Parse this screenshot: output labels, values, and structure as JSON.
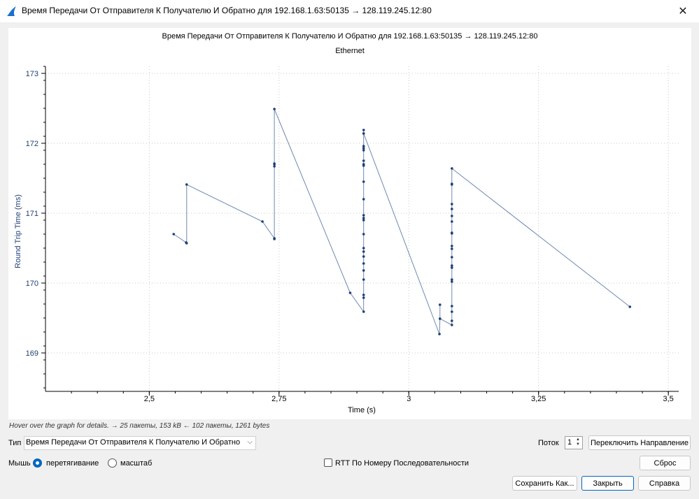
{
  "window": {
    "title": "Время Передачи От Отправителя К Получателю И Обратно для 192.168.1.63:50135 → 128.119.245.12:80"
  },
  "chart_data": {
    "type": "line",
    "title": "Время Передачи От Отправителя К Получателю И Обратно для 192.168.1.63:50135 → 128.119.245.12:80",
    "subtitle": "Ethernet",
    "xlabel": "Time (s)",
    "ylabel": "Round Trip Time (ms)",
    "xlim": [
      2.3,
      3.52
    ],
    "ylim": [
      168.45,
      173.1
    ],
    "xticks": [
      2.5,
      2.75,
      3,
      3.25,
      3.5
    ],
    "xtick_labels": [
      "2,5",
      "2,75",
      "3",
      "3,25",
      "3,5"
    ],
    "yticks": [
      169,
      170,
      171,
      172,
      173
    ],
    "ytick_labels": [
      "169",
      "170",
      "171",
      "172",
      "173"
    ],
    "grid": true,
    "line_color": "#6f89b0",
    "point_color": "#1f3f75",
    "series": [
      {
        "x": [
          2.547,
          2.571,
          2.572,
          2.572,
          2.718,
          2.741,
          2.741,
          2.741,
          2.741,
          2.741,
          2.741,
          2.887,
          2.913,
          2.913,
          2.913,
          2.913,
          2.913,
          2.913,
          2.913,
          2.913,
          2.913,
          2.913,
          2.913,
          2.913,
          2.913,
          2.913,
          2.913,
          2.913,
          2.913,
          2.913,
          2.913,
          2.913,
          2.913,
          2.913,
          2.913,
          2.913,
          3.059,
          3.06,
          3.06,
          3.06,
          3.083,
          3.083,
          3.083,
          3.083,
          3.083,
          3.083,
          3.083,
          3.083,
          3.083,
          3.083,
          3.083,
          3.083,
          3.083,
          3.083,
          3.083,
          3.083,
          3.083,
          3.083,
          3.083,
          3.083,
          3.426
        ],
        "y": [
          170.7,
          170.58,
          170.57,
          171.41,
          170.88,
          170.64,
          170.63,
          171.67,
          171.7,
          171.71,
          172.49,
          169.86,
          169.59,
          169.79,
          169.83,
          170.05,
          170.18,
          170.28,
          170.38,
          170.45,
          170.5,
          170.7,
          170.9,
          170.93,
          170.97,
          171.2,
          171.45,
          171.68,
          171.7,
          171.75,
          171.9,
          171.93,
          171.96,
          172.14,
          172.19,
          172.14,
          169.27,
          169.49,
          169.69,
          169.49,
          169.4,
          169.46,
          169.59,
          169.67,
          170.02,
          170.05,
          170.22,
          170.25,
          170.37,
          170.49,
          170.53,
          170.71,
          170.72,
          170.88,
          170.96,
          171.06,
          171.13,
          171.41,
          171.42,
          171.64,
          169.66
        ]
      }
    ]
  },
  "status_hint": "Hover over the graph for details. → 25 пакеты, 153 kB ← 102 пакеты, 1261 bytes",
  "controls": {
    "type_label": "Тип",
    "type_value": "Время Передачи От Отправителя К Получателю И Обратно",
    "stream_label": "Поток",
    "stream_value": "1",
    "switch_direction": "Переключить Направление",
    "mouse_label": "Мышь",
    "mouse_drag": "перетягивание",
    "mouse_zoom": "масштаб",
    "rtt_by_seq": "RTT По Номеру Последовательности",
    "reset": "Сброс",
    "save_as": "Сохранить Как...",
    "close": "Закрыть",
    "help": "Справка"
  }
}
